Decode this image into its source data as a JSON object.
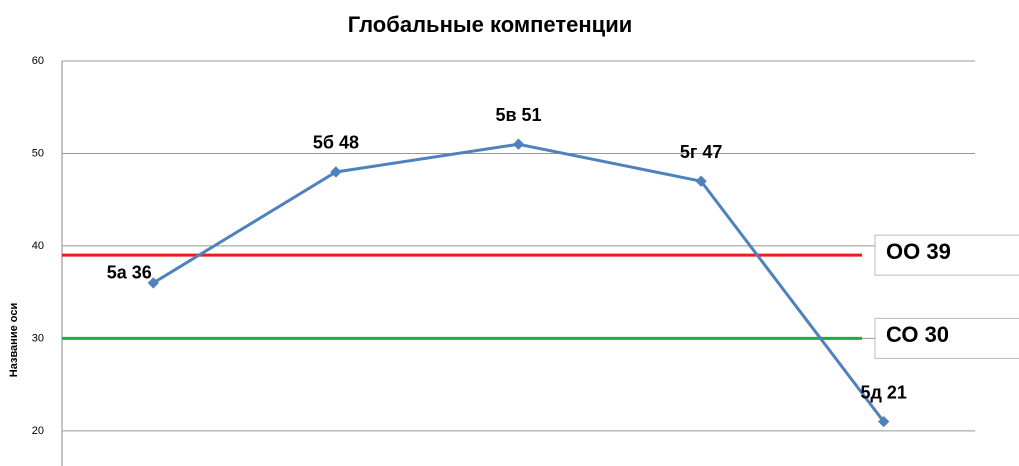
{
  "chart_data": {
    "type": "line",
    "title": "Глобальные  компетенции",
    "y_label": "Название оси",
    "categories": [
      "5а",
      "5б",
      "5в",
      "5г",
      "5д"
    ],
    "series": [
      {
        "name": "",
        "color": "#4f81bd",
        "values": [
          36,
          48,
          51,
          47,
          21
        ],
        "value_labels": [
          "5а 36",
          "5б 48",
          "5в 51",
          "5г 47",
          "5д 21"
        ]
      }
    ],
    "reference_lines": [
      {
        "label": "ОО  39",
        "value": 39,
        "color": "#ee1c1c"
      },
      {
        "label": "СО  30",
        "value": 30,
        "color": "#1faa3c"
      }
    ],
    "ylim": [
      16.2,
      60
    ],
    "yticks": [
      20,
      30,
      40,
      50,
      60
    ],
    "grid": true
  }
}
